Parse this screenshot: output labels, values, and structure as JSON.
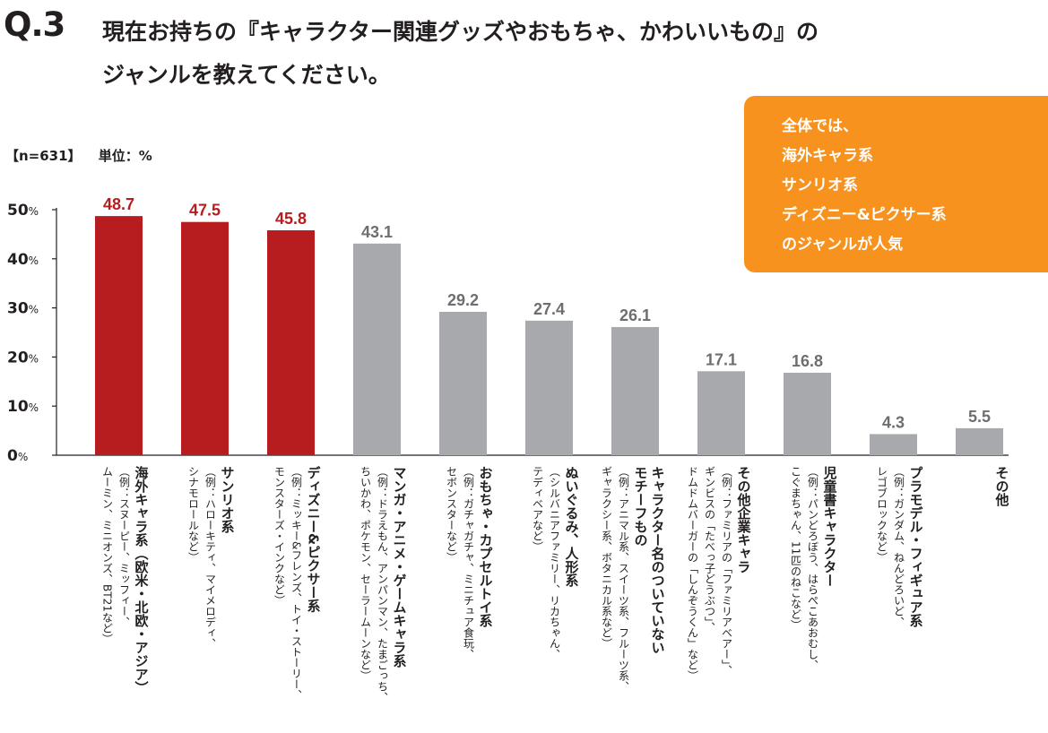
{
  "header": {
    "q_number": "Q.3",
    "title_line1": "現在お持ちの『キャラクター関連グッズやおもちゃ、かわいいもの』の",
    "title_line2": "ジャンルを教えてください。"
  },
  "meta": {
    "sample": "【n=631】",
    "unit": "単位：%"
  },
  "callout": {
    "lines": [
      "全体では、",
      "海外キャラ系",
      "サンリオ系",
      "ディズニー&ピクサー系",
      "のジャンルが人気"
    ],
    "color": "#f7921e"
  },
  "colors": {
    "highlight": "#b71c1f",
    "normal": "#a7a9ac",
    "highlight_text": "#b71c1f",
    "normal_text": "#6d6e71"
  },
  "chart_data": {
    "type": "bar",
    "ylim": [
      0,
      50
    ],
    "yticks": [
      0,
      10,
      20,
      30,
      40,
      50
    ],
    "ytick_labels": [
      "0%",
      "10%",
      "20%",
      "30%",
      "40%",
      "50%"
    ],
    "grid": false,
    "categories": [
      "海外キャラ系（欧米・北欧・アジア）",
      "サンリオ系",
      "ディズニー&ピクサー系",
      "マンガ・アニメ・ゲームキャラ系",
      "おもちゃ・カプセルトイ系",
      "ぬいぐるみ、人形系",
      "キャラクター名のついていないモチーフもの",
      "その他企業キャラ",
      "児童書キャラクター",
      "プラモデル・フィギュア系",
      "その他"
    ],
    "values": [
      48.7,
      47.5,
      45.8,
      43.1,
      29.2,
      27.4,
      26.1,
      17.1,
      16.8,
      4.3,
      5.5
    ],
    "value_labels": [
      "48.7",
      "47.5",
      "45.8",
      "43.1",
      "29.2",
      "27.4",
      "26.1",
      "17.1",
      "16.8",
      "4.3",
      "5.5"
    ],
    "highlighted": [
      true,
      true,
      true,
      false,
      false,
      false,
      false,
      false,
      false,
      false,
      false
    ]
  },
  "category_labels": [
    {
      "main": [
        "海外キャラ系（欧米・北欧・アジア）"
      ],
      "sub": [
        "（例：スヌーピー、ミッフィー、",
        "ムーミン、ミニオンズ、BT21など）"
      ]
    },
    {
      "main": [
        "サンリオ系"
      ],
      "sub": [
        "（例：ハローキティ、マイメロディ、",
        "シナモロールなど）"
      ]
    },
    {
      "main": [
        "ディズニー&ピクサー系"
      ],
      "sub": [
        "（例：ミッキー&フレンズ、トイ・ストーリー、",
        "モンスターズ・インクなど）"
      ]
    },
    {
      "main": [
        "マンガ・アニメ・ゲームキャラ系"
      ],
      "sub": [
        "（例：ドラえもん、アンパンマン、たまごっち、",
        "ちいかわ、ポケモン、セーラームーンなど）"
      ]
    },
    {
      "main": [
        "おもちゃ・カプセルトイ系"
      ],
      "sub": [
        "（例：ガチャガチャ、ミニチュア食玩、",
        "セボンスターなど）"
      ]
    },
    {
      "main": [
        "ぬいぐるみ、人形系"
      ],
      "sub": [
        "（シルバニアファミリー、リカちゃん、",
        "テディベアなど）"
      ]
    },
    {
      "main": [
        "キャラクター名のついていない",
        "モチーフもの"
      ],
      "sub": [
        "（例：アニマル系、スイーツ系、フルーツ系、",
        "ギャラクシー系、ボタニカル系など）"
      ]
    },
    {
      "main": [
        "その他企業キャラ"
      ],
      "sub": [
        "（例：ファミリアの「ファミリアベアー」、",
        "ギンビスの「たべっ子どうぶつ」、",
        "ドムドムバーガーの「しんぞうくん」など）"
      ]
    },
    {
      "main": [
        "児童書キャラクター"
      ],
      "sub": [
        "（例：パンどろぼう、はらぺこあおむし、",
        "こぐまちゃん、11匹のねこなど）"
      ]
    },
    {
      "main": [
        "プラモデル・フィギュア系"
      ],
      "sub": [
        "（例：ガンダム、ねんどろいど、",
        "レゴブロックなど）"
      ]
    },
    {
      "main": [
        "その他"
      ],
      "sub": []
    }
  ]
}
